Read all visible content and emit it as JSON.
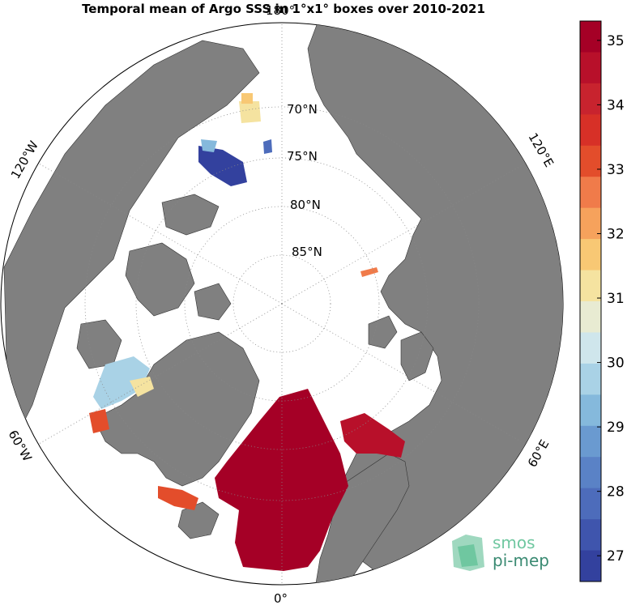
{
  "title": "Temporal mean of Argo SSS in 1°x1° boxes over 2010-2021",
  "colorbar": {
    "ticks": [
      "35",
      "34",
      "33",
      "32",
      "31",
      "30",
      "29",
      "28",
      "27"
    ],
    "colors": [
      "#a50026",
      "#b8102a",
      "#c8232e",
      "#d73027",
      "#e34d2b",
      "#f07b4a",
      "#f6a25c",
      "#f8c874",
      "#f5e3a0",
      "#e8ebd2",
      "#cfe6ec",
      "#a9d2e6",
      "#85b9dc",
      "#6a9ad0",
      "#5a82c6",
      "#4d6cbb",
      "#3f55ad",
      "#33419e"
    ],
    "range_min": 26.6,
    "range_max": 35.3
  },
  "map": {
    "projection": "north-polar-stereographic",
    "land_color": "#808080",
    "ocean_color": "#ffffff",
    "lat_labels": [
      "70°N",
      "75°N",
      "80°N",
      "85°N"
    ],
    "lon_labels": {
      "top": "180°",
      "bottom": "0°",
      "left_upper": "120°W",
      "left_lower": "60°W",
      "right_upper": "120°E",
      "right_lower": "60°E"
    }
  },
  "logo": {
    "line1": "smos",
    "line2": "pi-mep"
  }
}
